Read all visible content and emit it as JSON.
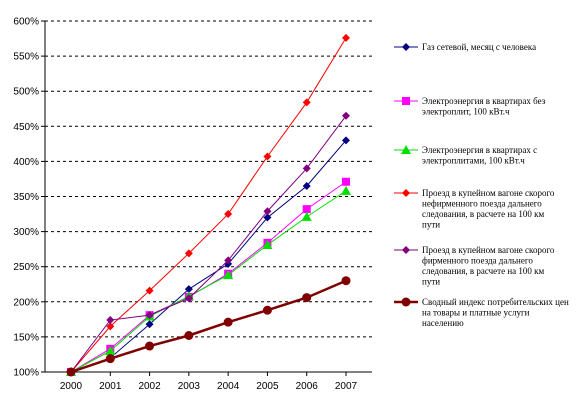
{
  "chart_data": {
    "type": "line",
    "x": [
      "2000",
      "2001",
      "2002",
      "2003",
      "2004",
      "2005",
      "2006",
      "2007"
    ],
    "ylim": [
      100,
      600
    ],
    "yticks": [
      "100%",
      "150%",
      "200%",
      "250%",
      "300%",
      "350%",
      "400%",
      "450%",
      "500%",
      "550%",
      "600%"
    ],
    "grid": true,
    "legend_position": "right",
    "series": [
      {
        "name": "Газ сетевой, месяц с человека",
        "color": "#000080",
        "marker": "diamond",
        "values": [
          100,
          120,
          168,
          218,
          254,
          320,
          365,
          430
        ]
      },
      {
        "name": "Электроэнергия в квартирах без электроплит, 100 кВт.ч",
        "color": "#FF00FF",
        "marker": "square",
        "values": [
          100,
          133,
          181,
          207,
          240,
          284,
          332,
          371
        ]
      },
      {
        "name": "Электроэнергия в квартирах с электроплитами, 100 кВт.ч",
        "color": "#00E000",
        "marker": "triangle",
        "values": [
          100,
          130,
          179,
          208,
          238,
          281,
          321,
          358
        ]
      },
      {
        "name": "Проезд в купейном вагоне скорого нефирменного поезда дальнего следования, в расчете на 100 км пути",
        "color": "#FF0000",
        "marker": "diamond",
        "values": [
          100,
          165,
          216,
          269,
          325,
          407,
          484,
          576
        ]
      },
      {
        "name": "Проезд в купейном вагоне скорого фирменного поезда дальнего следования, в расчете на 100 км пути",
        "color": "#800080",
        "marker": "diamond",
        "values": [
          100,
          174,
          181,
          205,
          259,
          329,
          390,
          465
        ]
      },
      {
        "name": "Сводный индекс потребительских цен на товары и платные услуги населению",
        "color": "#800000",
        "marker": "circle",
        "values": [
          100,
          119,
          137,
          152,
          171,
          188,
          206,
          230
        ]
      }
    ]
  }
}
